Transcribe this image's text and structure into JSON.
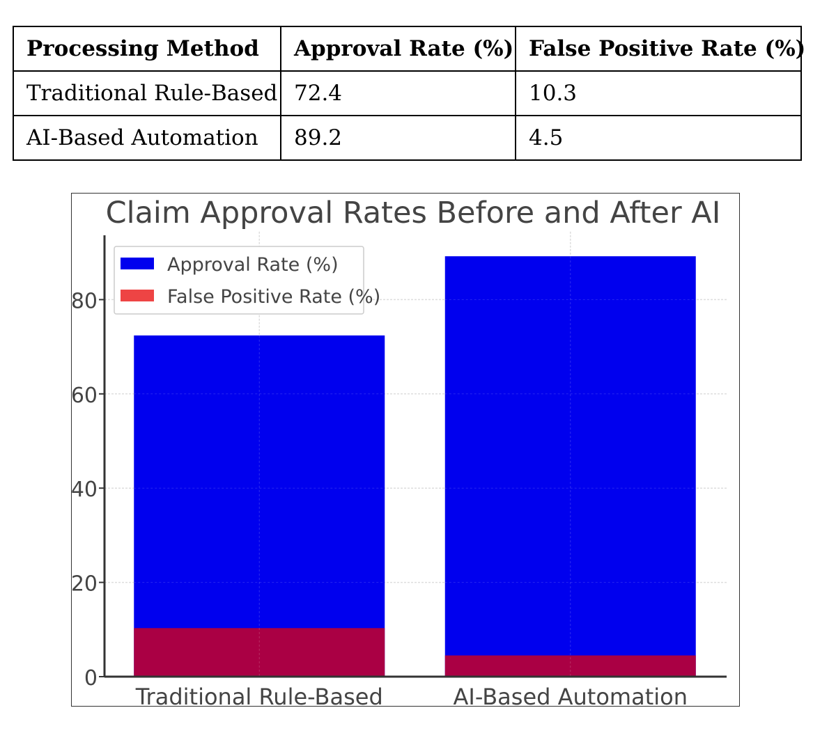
{
  "table": {
    "headers": [
      "Processing Method",
      "Approval Rate (%)",
      "False Positive Rate (%)"
    ],
    "rows": [
      [
        "Traditional Rule-Based",
        "72.4",
        "10.3"
      ],
      [
        "AI-Based Automation",
        "89.2",
        "4.5"
      ]
    ]
  },
  "chart_data": {
    "type": "bar",
    "title": "Claim Approval Rates Before and After AI",
    "categories": [
      "Traditional Rule-Based",
      "AI-Based Automation"
    ],
    "series": [
      {
        "name": "Approval Rate (%)",
        "values": [
          72.4,
          89.2
        ],
        "color": "#0000ee"
      },
      {
        "name": "False Positive Rate (%)",
        "values": [
          10.3,
          4.5
        ],
        "color": "#ee4444"
      }
    ],
    "overlap_color": "#aa0044",
    "yticks": [
      "0",
      "20",
      "40",
      "60",
      "80"
    ],
    "ylim": [
      0,
      90
    ],
    "grid": true,
    "legend": "top-left"
  }
}
